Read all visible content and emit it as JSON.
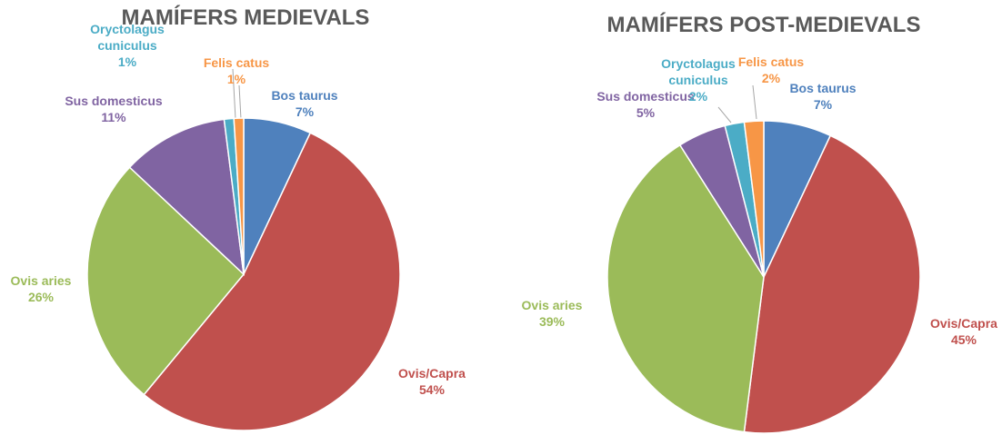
{
  "chart_data": [
    {
      "type": "pie",
      "title": "MAMÍFERS MEDIEVALS",
      "categories": [
        "Bos taurus",
        "Ovis/Capra",
        "Ovis aries",
        "Sus domesticus",
        "Oryctolagus cuniculus",
        "Felis catus"
      ],
      "values": [
        7,
        54,
        26,
        11,
        1,
        1
      ],
      "value_labels": [
        "7%",
        "54%",
        "26%",
        "11%",
        "1%",
        "1%"
      ],
      "colors": [
        "#4f81bd",
        "#c0504d",
        "#9bbb59",
        "#8064a2",
        "#4bacc6",
        "#f79646"
      ]
    },
    {
      "type": "pie",
      "title": "MAMÍFERS POST-MEDIEVALS",
      "categories": [
        "Bos taurus",
        "Ovis/Capra",
        "Ovis aries",
        "Sus domesticus",
        "Oryctolagus cuniculus",
        "Felis catus"
      ],
      "values": [
        7,
        45,
        39,
        5,
        2,
        2
      ],
      "value_labels": [
        "7%",
        "45%",
        "39%",
        "5%",
        "2%",
        "2%"
      ],
      "colors": [
        "#4f81bd",
        "#c0504d",
        "#9bbb59",
        "#8064a2",
        "#4bacc6",
        "#f79646"
      ]
    }
  ]
}
